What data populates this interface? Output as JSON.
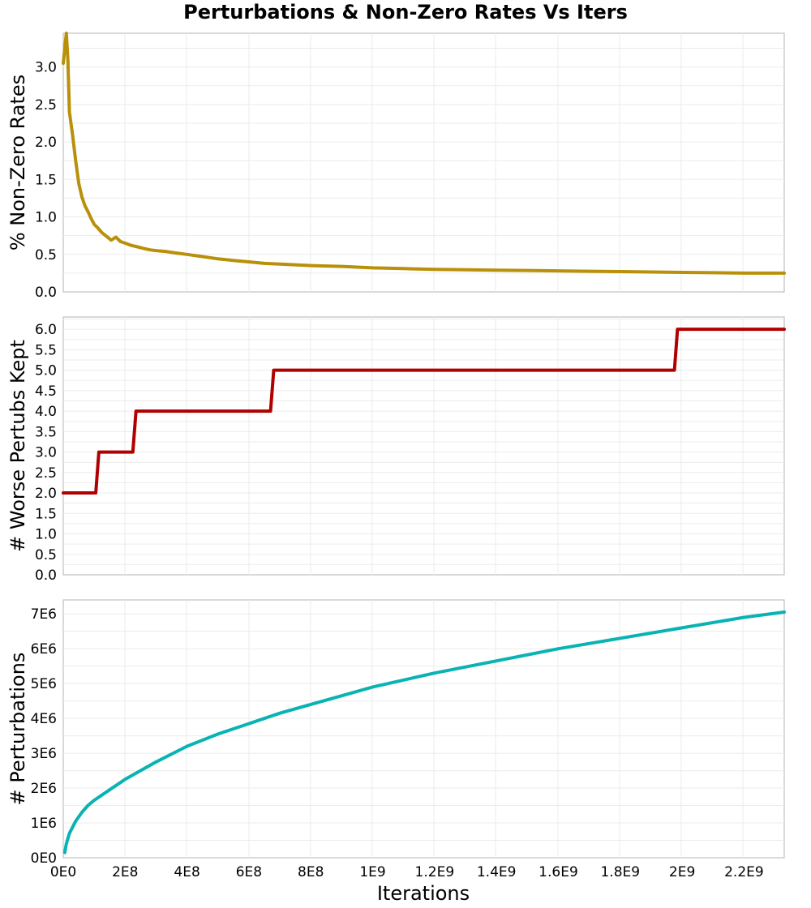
{
  "title": "Perturbations & Non-Zero Rates Vs Iters",
  "xlabel": "Iterations",
  "chart_data": [
    {
      "type": "line",
      "ylabel": "% Non-Zero Rates",
      "xlim": [
        0,
        2330000000
      ],
      "ylim": [
        0,
        3.45
      ],
      "yticks": [
        0,
        0.5,
        1.0,
        1.5,
        2.0,
        2.5,
        3.0
      ],
      "ytick_labels": [
        "0.0",
        "0.5",
        "1.0",
        "1.5",
        "2.0",
        "2.5",
        "3.0"
      ],
      "grid": true,
      "series": [
        {
          "color": "#b8900a",
          "x": [
            0,
            10000000,
            15000000,
            20000000,
            30000000,
            40000000,
            50000000,
            60000000,
            70000000,
            80000000,
            90000000,
            100000000,
            110000000,
            125000000,
            140000000,
            155000000,
            170000000,
            185000000,
            200000000,
            220000000,
            240000000,
            260000000,
            280000000,
            300000000,
            330000000,
            360000000,
            400000000,
            450000000,
            500000000,
            550000000,
            600000000,
            650000000,
            700000000,
            800000000,
            900000000,
            1000000000,
            1100000000,
            1200000000,
            1300000000,
            1400000000,
            1500000000,
            1600000000,
            1700000000,
            1800000000,
            1900000000,
            2000000000,
            2100000000,
            2200000000,
            2330000000
          ],
          "y": [
            3.05,
            3.45,
            3.1,
            2.4,
            2.1,
            1.75,
            1.45,
            1.27,
            1.15,
            1.07,
            0.98,
            0.9,
            0.86,
            0.79,
            0.74,
            0.69,
            0.73,
            0.67,
            0.65,
            0.62,
            0.6,
            0.58,
            0.56,
            0.55,
            0.54,
            0.52,
            0.5,
            0.47,
            0.44,
            0.42,
            0.4,
            0.38,
            0.37,
            0.35,
            0.34,
            0.32,
            0.31,
            0.3,
            0.295,
            0.29,
            0.285,
            0.28,
            0.275,
            0.27,
            0.265,
            0.26,
            0.255,
            0.25,
            0.25
          ]
        }
      ]
    },
    {
      "type": "line",
      "ylabel": "# Worse Pertubs Kept",
      "xlim": [
        0,
        2330000000
      ],
      "ylim": [
        0,
        6.3
      ],
      "yticks": [
        0,
        0.5,
        1.0,
        1.5,
        2.0,
        2.5,
        3.0,
        3.5,
        4.0,
        4.5,
        5.0,
        5.5,
        6.0
      ],
      "ytick_labels": [
        "0.0",
        "0.5",
        "1.0",
        "1.5",
        "2.0",
        "2.5",
        "3.0",
        "3.5",
        "4.0",
        "4.5",
        "5.0",
        "5.5",
        "6.0"
      ],
      "grid": true,
      "series": [
        {
          "color": "#b00000",
          "x": [
            0,
            105000000,
            115000000,
            225000000,
            235000000,
            670000000,
            680000000,
            1975000000,
            1985000000,
            2330000000
          ],
          "y": [
            2,
            2,
            3,
            3,
            4,
            4,
            5,
            5,
            6,
            6
          ]
        }
      ]
    },
    {
      "type": "line",
      "ylabel": "# Perturbations",
      "xlim": [
        0,
        2330000000
      ],
      "ylim": [
        0,
        7400000
      ],
      "yticks": [
        0,
        1000000,
        2000000,
        3000000,
        4000000,
        5000000,
        6000000,
        7000000
      ],
      "ytick_labels": [
        "0E0",
        "1E6",
        "2E6",
        "3E6",
        "4E6",
        "5E6",
        "6E6",
        "7E6"
      ],
      "xticks": [
        0,
        200000000,
        400000000,
        600000000,
        800000000,
        1000000000,
        1200000000,
        1400000000,
        1600000000,
        1800000000,
        2000000000,
        2200000000
      ],
      "xtick_labels": [
        "0E0",
        "2E8",
        "4E8",
        "6E8",
        "8E8",
        "1E9",
        "1.2E9",
        "1.4E9",
        "1.6E9",
        "1.8E9",
        "2E9",
        "2.2E9"
      ],
      "grid": true,
      "series": [
        {
          "color": "#0ab3b3",
          "x": [
            5000000,
            10000000,
            20000000,
            40000000,
            60000000,
            80000000,
            100000000,
            150000000,
            200000000,
            300000000,
            400000000,
            500000000,
            600000000,
            700000000,
            800000000,
            900000000,
            1000000000,
            1200000000,
            1400000000,
            1600000000,
            1800000000,
            2000000000,
            2200000000,
            2330000000
          ],
          "y": [
            150000,
            400000,
            700000,
            1050000,
            1300000,
            1500000,
            1650000,
            1950000,
            2250000,
            2750000,
            3200000,
            3550000,
            3850000,
            4150000,
            4400000,
            4650000,
            4900000,
            5300000,
            5650000,
            6000000,
            6300000,
            6600000,
            6900000,
            7050000
          ]
        }
      ]
    }
  ]
}
